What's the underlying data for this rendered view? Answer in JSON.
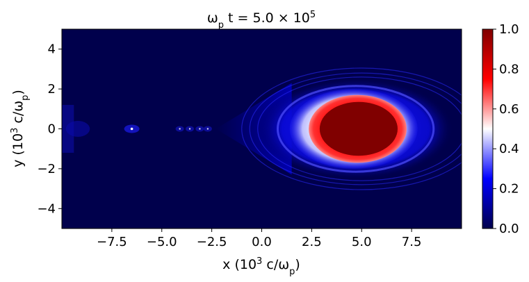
{
  "chart_data": {
    "type": "heatmap",
    "title": "ω_p t = 5.0 × 10^5",
    "xlabel": "x (10^3 c/ω_p)",
    "ylabel": "y (10^3 c/ω_p)",
    "xlim": [
      -10,
      10
    ],
    "ylim": [
      -5,
      5
    ],
    "x_ticks": [
      -7.5,
      -5.0,
      -2.5,
      0.0,
      2.5,
      5.0,
      7.5
    ],
    "x_tick_labels": [
      "−7.5",
      "−5.0",
      "−2.5",
      "0.0",
      "2.5",
      "5.0",
      "7.5"
    ],
    "y_ticks": [
      4,
      2,
      0,
      -2,
      -4
    ],
    "y_tick_labels": [
      "4",
      "2",
      "0",
      "−2",
      "−4"
    ],
    "colorbar": {
      "range": [
        0.0,
        1.0
      ],
      "ticks": [
        1.0,
        0.8,
        0.6,
        0.4,
        0.2,
        0.0
      ],
      "tick_labels": [
        "1.0",
        "0.8",
        "0.6",
        "0.4",
        "0.2",
        "0.0"
      ],
      "colormap": "seismic",
      "colors": [
        "#00004c",
        "#0000ff",
        "#ffffff",
        "#ff0000",
        "#800000"
      ]
    },
    "features": {
      "bubble_center": [
        4.8,
        0.0
      ],
      "bubble_core_value": 1.0,
      "shell_value": 0.4,
      "halo_value": 0.2,
      "background_value": 0.0,
      "axis_spots_x": [
        -6.5,
        -4.1,
        -3.6,
        -3.1,
        -2.7
      ]
    },
    "grid": false
  }
}
